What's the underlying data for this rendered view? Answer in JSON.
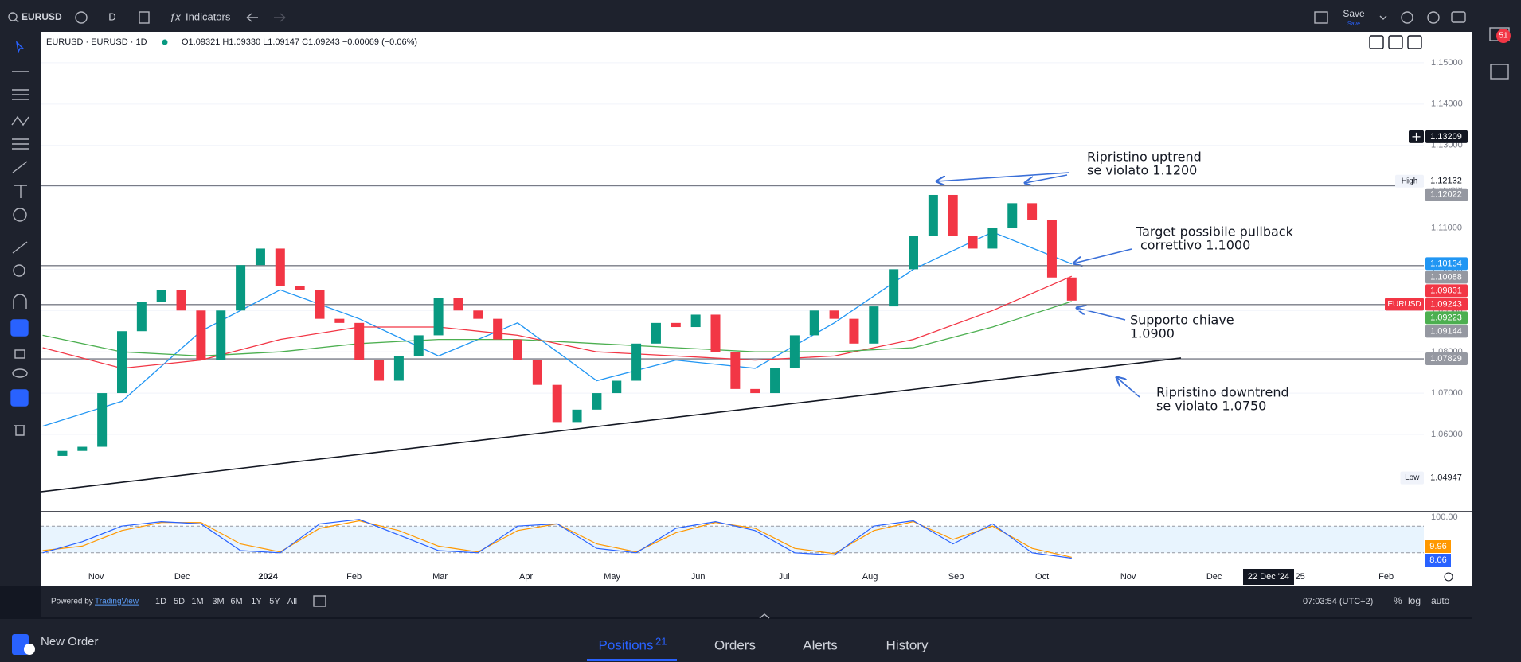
{
  "toolbar": {
    "symbol": "EURUSD",
    "interval": "D",
    "indicators": "Indicators",
    "save": "Save",
    "save_sub": "Save"
  },
  "notifications": 51,
  "chart_data": {
    "type": "candlestick",
    "legend": {
      "title": "EURUSD · EURUSD · 1D",
      "ohlc": "O1.09321 H1.09330 L1.09147 C1.09243 −0.00069 (−0.06%)"
    },
    "closes": [
      1.0548,
      1.056,
      1.057,
      1.07,
      1.085,
      1.092,
      1.095,
      1.09,
      1.078,
      1.09,
      1.101,
      1.105,
      1.096,
      1.095,
      1.088,
      1.087,
      1.078,
      1.073,
      1.079,
      1.084,
      1.093,
      1.09,
      1.088,
      1.083,
      1.078,
      1.072,
      1.063,
      1.066,
      1.07,
      1.073,
      1.082,
      1.087,
      1.086,
      1.089,
      1.08,
      1.071,
      1.07,
      1.076,
      1.084,
      1.09,
      1.088,
      1.082,
      1.091,
      1.1,
      1.108,
      1.118,
      1.108,
      1.105,
      1.11,
      1.116,
      1.112,
      1.098,
      1.0924
    ],
    "up_color": "#089981",
    "down_color": "#f23645",
    "moving_averages": [
      {
        "color": "#2196f3",
        "values": [
          1.062,
          1.068,
          1.085,
          1.095,
          1.088,
          1.079,
          1.087,
          1.073,
          1.078,
          1.076,
          1.087,
          1.1,
          1.109,
          1.1013
        ]
      },
      {
        "color": "#f23645",
        "values": [
          1.081,
          1.076,
          1.078,
          1.083,
          1.086,
          1.086,
          1.084,
          1.08,
          1.079,
          1.078,
          1.079,
          1.083,
          1.09,
          1.0983
        ]
      },
      {
        "color": "#4caf50",
        "values": [
          1.084,
          1.08,
          1.079,
          1.08,
          1.082,
          1.083,
          1.083,
          1.082,
          1.081,
          1.08,
          1.08,
          1.081,
          1.086,
          1.0922
        ]
      }
    ],
    "ylim": [
      1.0413,
      1.1575
    ],
    "yticks": [
      {
        "value": 1.06,
        "label": "1.06000"
      },
      {
        "value": 1.07,
        "label": "1.07000"
      },
      {
        "value": 1.08,
        "label": "1.08000"
      },
      {
        "value": 1.09,
        "label": "1.09000"
      },
      {
        "value": 1.1,
        "label": "1.10000"
      },
      {
        "value": 1.11,
        "label": "1.11000"
      },
      {
        "value": 1.12,
        "label": "1.12000"
      },
      {
        "value": 1.13,
        "label": "1.13000"
      },
      {
        "value": 1.14,
        "label": "1.14000"
      },
      {
        "value": 1.15,
        "label": "1.15000"
      }
    ],
    "grid": true,
    "horizontal_lines": [
      1.12022,
      1.10088,
      1.09144,
      1.07829
    ],
    "trendline": [
      1.0461,
      1.0785
    ],
    "price_labels": [
      {
        "value": 1.13209,
        "color": "#131722"
      },
      {
        "value": 1.12132,
        "color": "#ffffff",
        "tag": "High"
      },
      {
        "value": 1.12022,
        "color": "#9598a1"
      },
      {
        "value": 1.10134,
        "color": "#2196f3"
      },
      {
        "value": 1.10088,
        "color": "#9598a1"
      },
      {
        "value": 1.09831,
        "color": "#f23645"
      },
      {
        "value": 1.09243,
        "color": "#f23645",
        "tag": "EURUSD"
      },
      {
        "value": 1.09223,
        "color": "#4caf50"
      },
      {
        "value": 1.09144,
        "color": "#9598a1"
      },
      {
        "value": 1.07829,
        "color": "#9598a1"
      },
      {
        "value": 1.04947,
        "color": "#ffffff",
        "tag": "Low"
      }
    ],
    "annotations": [
      {
        "lines": [
          "Ripristino uptrend",
          "se violato 1.1200"
        ]
      },
      {
        "lines": [
          "Target possibile pullback",
          "correttivo   1.1000"
        ]
      },
      {
        "lines": [
          "Supporto chiave",
          "1.0900"
        ]
      },
      {
        "lines": [
          "Ripristino downtrend",
          "se violato 1.0750"
        ]
      }
    ],
    "categories": [
      "Nov",
      "Dec",
      "2024",
      "Feb",
      "Mar",
      "Apr",
      "May",
      "Jun",
      "Jul",
      "Aug",
      "Sep",
      "Oct",
      "Nov",
      "Dec",
      "25",
      "Feb"
    ],
    "crosshair_date": "22 Dec '24",
    "oscillator": {
      "type": "line",
      "ylim": [
        0,
        100
      ],
      "yticks": [
        {
          "value": 100,
          "label": "100.00"
        }
      ],
      "levels": [
        80,
        20
      ],
      "series": [
        {
          "color": "#ff9800",
          "values": [
            25,
            35,
            70,
            88,
            88,
            40,
            22,
            75,
            92,
            70,
            35,
            22,
            70,
            85,
            40,
            22,
            65,
            88,
            75,
            30,
            18,
            70,
            90,
            50,
            80,
            30,
            9.96
          ]
        },
        {
          "color": "#2962ff",
          "values": [
            20,
            45,
            80,
            90,
            85,
            25,
            20,
            85,
            95,
            60,
            25,
            20,
            80,
            85,
            30,
            20,
            75,
            90,
            70,
            20,
            15,
            80,
            92,
            40,
            85,
            20,
            8.06
          ]
        }
      ]
    }
  },
  "bottom_bar": {
    "powered_by": "Powered by",
    "brand": "TradingView",
    "ranges": [
      "1D",
      "5D",
      "1M",
      "3M",
      "6M",
      "1Y",
      "5Y",
      "All"
    ],
    "clock": "07:03:54 (UTC+2)",
    "percent": "%",
    "log": "log",
    "auto": "auto"
  },
  "bottom_panel": {
    "new_order": "New Order",
    "tabs": [
      "Positions",
      "Orders",
      "Alerts",
      "History"
    ],
    "positions_count": 21
  }
}
